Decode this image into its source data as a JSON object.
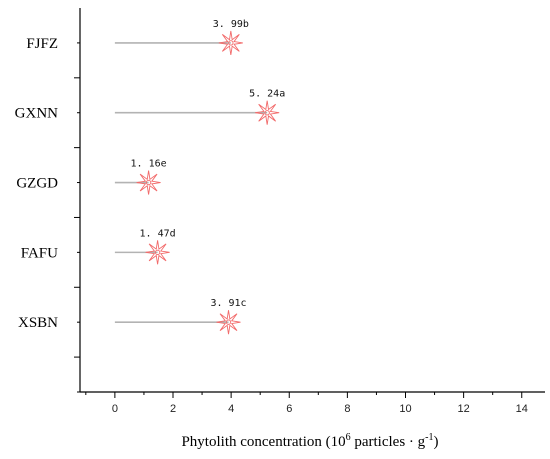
{
  "chart_data": {
    "type": "lollipop",
    "categories": [
      "FJFZ",
      "GXNN",
      "GZGD",
      "FAFU",
      "XSBN"
    ],
    "values": [
      3.99,
      5.24,
      1.16,
      1.47,
      3.91
    ],
    "data_labels": [
      "3. 99b",
      "5. 24a",
      "1. 16e",
      "1. 47d",
      "3. 91c"
    ],
    "xlim": [
      -1.2,
      14.8
    ],
    "x_ticks": [
      0,
      2,
      4,
      6,
      8,
      10,
      12,
      14
    ],
    "xlabel": {
      "prefix": "Phytolith concentration (10",
      "exp1": "6",
      "middle": " particles · g",
      "exp2": "-1",
      "suffix": ")"
    },
    "grid": false,
    "colors": {
      "stem": "#b3b3b3",
      "marker": "#f26b6b",
      "axis": "#000000"
    }
  }
}
